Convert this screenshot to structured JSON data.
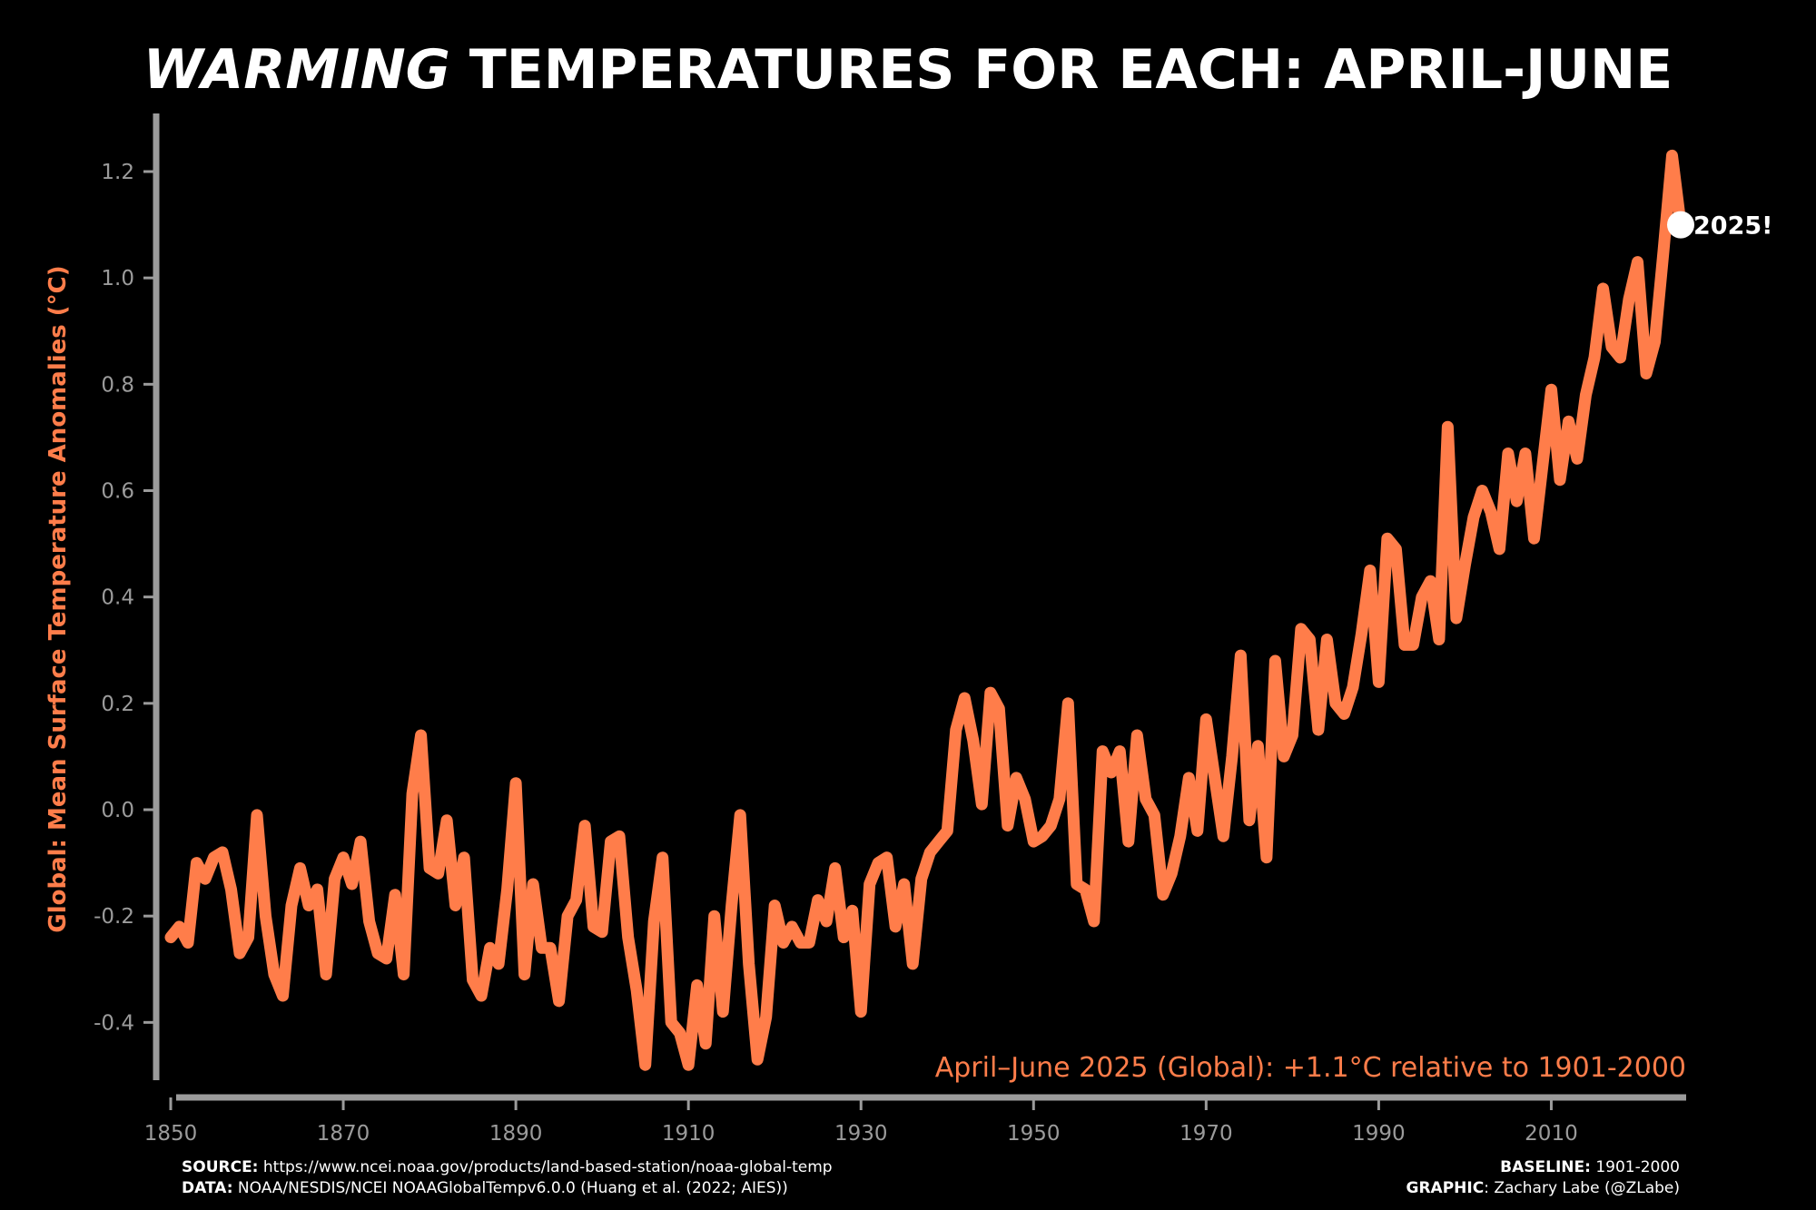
{
  "title": {
    "emphasis": "WARMING",
    "rest": " TEMPERATURES FOR EACH: APRIL-JUNE"
  },
  "colors": {
    "background": "#000000",
    "line": "#ff7d4a",
    "axis": "#9b9b9b",
    "marker": "#ffffff",
    "text": "#ffffff"
  },
  "footer": {
    "source_label": "SOURCE:",
    "source_value": " https://www.ncei.noaa.gov/products/land-based-station/noaa-global-temp",
    "data_label": "DATA:",
    "data_value": " NOAA/NESDIS/NCEI NOAAGlobalTempv6.0.0 (Huang et al. (2022; AIES))",
    "baseline_label": "BASELINE:",
    "baseline_value": " 1901-2000",
    "graphic_label": "GRAPHIC",
    "graphic_value": ": Zachary Labe (@ZLabe)"
  },
  "chart_data": {
    "type": "line",
    "title": "WARMING TEMPERATURES FOR EACH: APRIL-JUNE",
    "ylabel": "Global: Mean Surface Temperature Anomalies (°C)",
    "xlabel": "",
    "xlim": [
      1850,
      2025
    ],
    "ylim": [
      -0.5,
      1.3
    ],
    "x_ticks": [
      1850,
      1870,
      1890,
      1910,
      1930,
      1950,
      1970,
      1990,
      2010
    ],
    "y_ticks": [
      -0.4,
      -0.2,
      0.0,
      0.2,
      0.4,
      0.6,
      0.8,
      1.0,
      1.2
    ],
    "y_tick_labels": [
      "-0.4",
      "-0.2",
      "0.0",
      "0.2",
      "0.4",
      "0.6",
      "0.8",
      "1.0",
      "1.2"
    ],
    "grid": false,
    "annotation": "April–June 2025 (Global): +1.1°C relative to 1901-2000",
    "highlight": {
      "year": 2025,
      "value": 1.1,
      "label": "2025!"
    },
    "series": [
      {
        "start_year": 1850,
        "values": [
          -0.24,
          -0.22,
          -0.25,
          -0.1,
          -0.13,
          -0.09,
          -0.08,
          -0.15,
          -0.27,
          -0.24,
          -0.01,
          -0.2,
          -0.31,
          -0.35,
          -0.18,
          -0.11,
          -0.18,
          -0.15,
          -0.31,
          -0.13,
          -0.09,
          -0.14,
          -0.06,
          -0.21,
          -0.27,
          -0.28,
          -0.16,
          -0.31,
          0.03,
          0.14,
          -0.11,
          -0.12,
          -0.02,
          -0.18,
          -0.09,
          -0.32,
          -0.35,
          -0.26,
          -0.29,
          -0.15,
          0.05,
          -0.31,
          -0.14,
          -0.26,
          -0.26,
          -0.36,
          -0.2,
          -0.17,
          -0.03,
          -0.22,
          -0.23,
          -0.06,
          -0.05,
          -0.24,
          -0.34,
          -0.48,
          -0.21,
          -0.09,
          -0.4,
          -0.42,
          -0.48,
          -0.33,
          -0.44,
          -0.2,
          -0.38,
          -0.18,
          -0.01,
          -0.29,
          -0.47,
          -0.39,
          -0.18,
          -0.25,
          -0.22,
          -0.25,
          -0.25,
          -0.17,
          -0.21,
          -0.11,
          -0.24,
          -0.19,
          -0.38,
          -0.14,
          -0.1,
          -0.09,
          -0.22,
          -0.14,
          -0.29,
          -0.13,
          -0.08,
          -0.06,
          -0.04,
          0.15,
          0.21,
          0.13,
          0.01,
          0.22,
          0.19,
          -0.03,
          0.06,
          0.02,
          -0.06,
          -0.05,
          -0.03,
          0.02,
          0.2,
          -0.14,
          -0.15,
          -0.21,
          0.11,
          0.07,
          0.11,
          -0.06,
          0.14,
          0.02,
          -0.01,
          -0.16,
          -0.12,
          -0.05,
          0.06,
          -0.04,
          0.17,
          0.06,
          -0.05,
          0.1,
          0.29,
          -0.02,
          0.12,
          -0.09,
          0.28,
          0.1,
          0.14,
          0.34,
          0.32,
          0.15,
          0.32,
          0.2,
          0.18,
          0.23,
          0.33,
          0.45,
          0.24,
          0.51,
          0.49,
          0.31,
          0.31,
          0.4,
          0.43,
          0.32,
          0.72,
          0.36,
          0.46,
          0.55,
          0.6,
          0.56,
          0.49,
          0.67,
          0.58,
          0.67,
          0.51,
          0.65,
          0.79,
          0.62,
          0.73,
          0.66,
          0.78,
          0.85,
          0.98,
          0.87,
          0.85,
          0.96,
          1.03,
          0.82,
          0.88,
          1.05,
          1.23,
          1.1
        ]
      }
    ]
  }
}
